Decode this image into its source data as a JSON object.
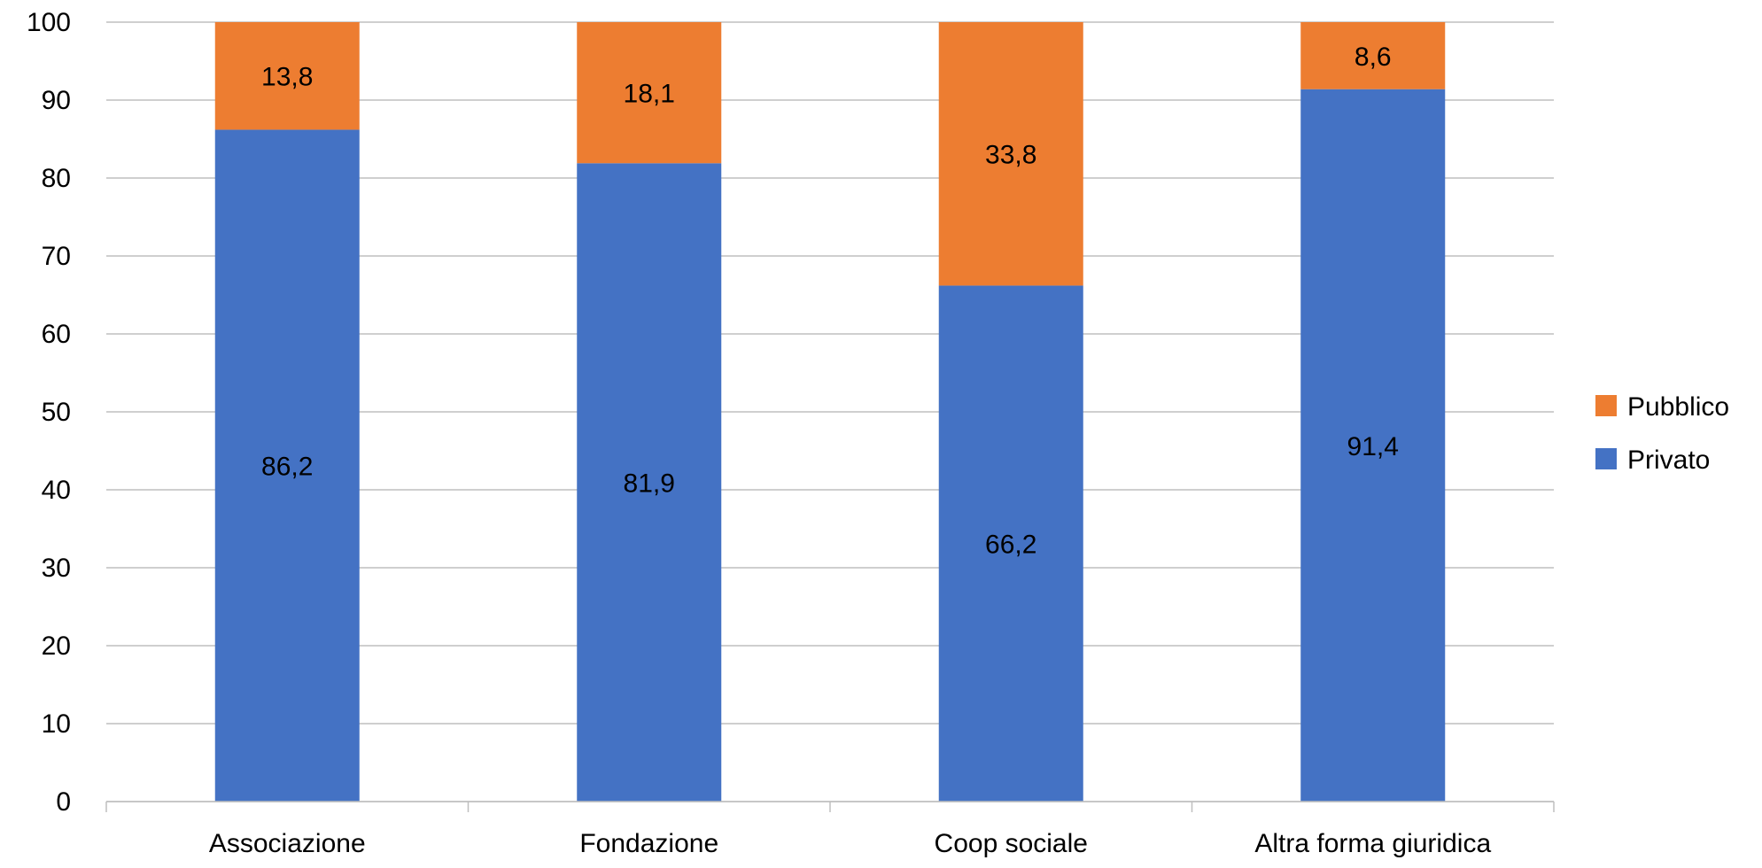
{
  "chart_data": {
    "type": "bar",
    "stacked": true,
    "categories": [
      "Associazione",
      "Fondazione",
      "Coop sociale",
      "Altra forma giuridica"
    ],
    "series": [
      {
        "name": "Privato",
        "values": [
          86.2,
          81.9,
          66.2,
          91.4
        ],
        "labels": [
          "86,2",
          "81,9",
          "66,2",
          "91,4"
        ],
        "color": "#4472C4"
      },
      {
        "name": "Pubblico",
        "values": [
          13.8,
          18.1,
          33.8,
          8.6
        ],
        "labels": [
          "13,8",
          "18,1",
          "33,8",
          "8,6"
        ],
        "color": "#ED7D31"
      }
    ],
    "yticks": [
      "0",
      "10",
      "20",
      "30",
      "40",
      "50",
      "60",
      "70",
      "80",
      "90",
      "100"
    ],
    "ylim": [
      0,
      100
    ],
    "grid": true,
    "legend_position": "right",
    "legend_order": [
      "Pubblico",
      "Privato"
    ],
    "title": "",
    "xlabel": "",
    "ylabel": ""
  }
}
